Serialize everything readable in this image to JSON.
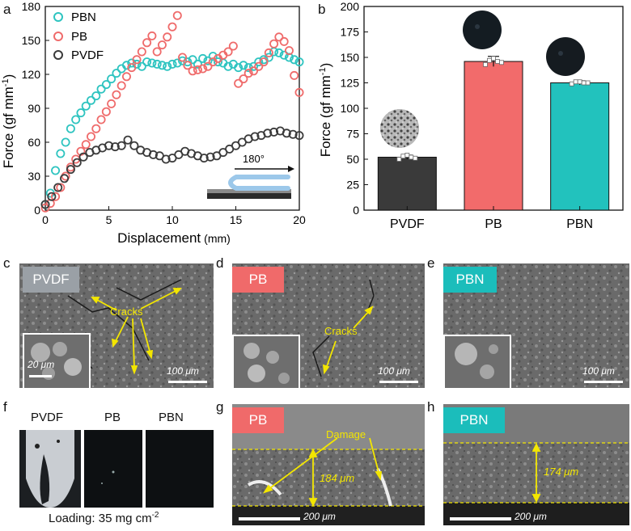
{
  "colors": {
    "pbn": "#2ec4c0",
    "pb": "#ef6b6b",
    "pvdf": "#3b3b3b",
    "pvdf_tag": "#9aa0a6",
    "pb_tag": "#f06a6a",
    "pbn_tag": "#1bbdbb",
    "annotation": "#f3e600",
    "pvdf_bar": "#3a3a3a",
    "pb_bar": "#f26b6b",
    "pbn_bar": "#22c2bd"
  },
  "chart_data": [
    {
      "panel": "a",
      "type": "scatter",
      "xlabel": "Displacement (mm)",
      "xlabel_main": "Displacement",
      "xlabel_unit": "(mm)",
      "ylabel": "Force (gf mm⁻¹)",
      "ylabel_main": "Force (gf mm",
      "ylabel_sup": "-1",
      "ylabel_close": ")",
      "xlim": [
        0,
        20
      ],
      "ylim": [
        0,
        180
      ],
      "xticks": [
        0,
        5,
        10,
        15,
        20
      ],
      "yticks": [
        0,
        30,
        60,
        90,
        120,
        150,
        180
      ],
      "inset_label": "180°",
      "series": [
        {
          "name": "PBN",
          "color_key": "pbn",
          "x": [
            0,
            0.4,
            0.8,
            1.2,
            1.6,
            2,
            2.4,
            2.8,
            3.2,
            3.6,
            4,
            4.4,
            4.8,
            5.2,
            5.6,
            6,
            6.4,
            6.8,
            7.2,
            7.6,
            8,
            8.4,
            8.8,
            9.2,
            9.6,
            10,
            10.4,
            10.8,
            11.2,
            11.6,
            12,
            12.4,
            12.8,
            13.2,
            13.6,
            14,
            14.4,
            14.8,
            15.2,
            15.6,
            16,
            16.4,
            16.8,
            17.2,
            17.6,
            18,
            18.4,
            18.8,
            19.2,
            19.6,
            20
          ],
          "values": [
            5,
            15,
            35,
            50,
            60,
            72,
            80,
            86,
            92,
            97,
            101,
            107,
            111,
            116,
            121,
            125,
            128,
            130,
            129,
            127,
            131,
            130,
            129,
            128,
            127,
            129,
            130,
            132,
            131,
            133,
            129,
            134,
            132,
            136,
            131,
            130,
            127,
            129,
            126,
            128,
            126,
            127,
            131,
            133,
            135,
            140,
            139,
            137,
            135,
            133,
            131
          ]
        },
        {
          "name": "PB",
          "color_key": "pb",
          "x": [
            0,
            0.4,
            0.8,
            1.2,
            1.6,
            2,
            2.4,
            2.8,
            3.2,
            3.6,
            4,
            4.4,
            4.8,
            5.2,
            5.6,
            6,
            6.4,
            6.8,
            7.2,
            7.6,
            8,
            8.4,
            8.8,
            9.2,
            9.6,
            10,
            10.4,
            10.8,
            11.2,
            11.6,
            12,
            12.4,
            12.8,
            13.2,
            13.6,
            14,
            14.4,
            14.8,
            15.2,
            15.6,
            16,
            16.4,
            16.8,
            17.2,
            17.6,
            18,
            18.4,
            18.8,
            19.2,
            19.6,
            20
          ],
          "values": [
            2,
            6,
            12,
            20,
            30,
            38,
            45,
            52,
            58,
            65,
            72,
            80,
            87,
            94,
            102,
            110,
            118,
            126,
            133,
            140,
            148,
            154,
            140,
            146,
            153,
            162,
            172,
            135,
            128,
            123,
            124,
            125,
            127,
            131,
            134,
            137,
            140,
            145,
            112,
            116,
            121,
            123,
            127,
            131,
            139,
            147,
            153,
            149,
            141,
            119,
            104
          ]
        },
        {
          "name": "PVDF",
          "color_key": "pvdf",
          "x": [
            0,
            0.5,
            1,
            1.5,
            2,
            2.5,
            3,
            3.5,
            4,
            4.5,
            5,
            5.5,
            6,
            6.5,
            7,
            7.5,
            8,
            8.5,
            9,
            9.5,
            10,
            10.5,
            11,
            11.5,
            12,
            12.5,
            13,
            13.5,
            14,
            14.5,
            15,
            15.5,
            16,
            16.5,
            17,
            17.5,
            18,
            18.5,
            19,
            19.5,
            20
          ],
          "values": [
            5,
            12,
            20,
            28,
            36,
            42,
            47,
            51,
            53,
            55,
            57,
            56,
            57,
            62,
            57,
            53,
            51,
            49,
            48,
            45,
            46,
            49,
            52,
            50,
            48,
            46,
            47,
            48,
            51,
            54,
            57,
            60,
            63,
            65,
            66,
            68,
            69,
            70,
            68,
            67,
            66
          ]
        }
      ]
    },
    {
      "panel": "b",
      "type": "bar",
      "categories": [
        "PVDF",
        "PB",
        "PBN"
      ],
      "values": [
        52,
        146,
        125
      ],
      "errors": [
        2,
        5,
        2
      ],
      "ylabel": "Force (gf mm⁻¹)",
      "ylabel_main": "Force (gf mm",
      "ylabel_sup": "-1",
      "ylabel_close": ")",
      "ylim": [
        0,
        200
      ],
      "yticks": [
        0,
        25,
        50,
        75,
        100,
        125,
        150,
        175,
        200
      ],
      "points": [
        [
          50,
          53,
          54,
          52,
          51
        ],
        [
          143,
          147,
          149,
          146,
          145
        ],
        [
          124,
          126,
          126,
          125,
          125
        ]
      ]
    }
  ],
  "legend": {
    "items": [
      "PBN",
      "PB",
      "PVDF"
    ]
  },
  "panels": {
    "a": "a",
    "b": "b",
    "c": "c",
    "d": "d",
    "e": "e",
    "f": "f",
    "g": "g",
    "h": "h"
  },
  "sem": {
    "c": {
      "tag": "PVDF",
      "annotation": "Cracks",
      "inset_scale": "20 μm",
      "scale": "100 μm"
    },
    "d": {
      "tag": "PB",
      "annotation": "Cracks",
      "scale": "100 μm"
    },
    "e": {
      "tag": "PBN",
      "scale": "100 μm"
    },
    "f": {
      "labels": [
        "PVDF",
        "PB",
        "PBN"
      ],
      "loading": "Loading: 35 mg cm",
      "loading_sup": "-2"
    },
    "g": {
      "tag": "PB",
      "annotation": "Damage",
      "thickness": "184 μm",
      "scale": "200 μm"
    },
    "h": {
      "tag": "PBN",
      "thickness": "174 μm",
      "scale": "200 μm"
    }
  }
}
